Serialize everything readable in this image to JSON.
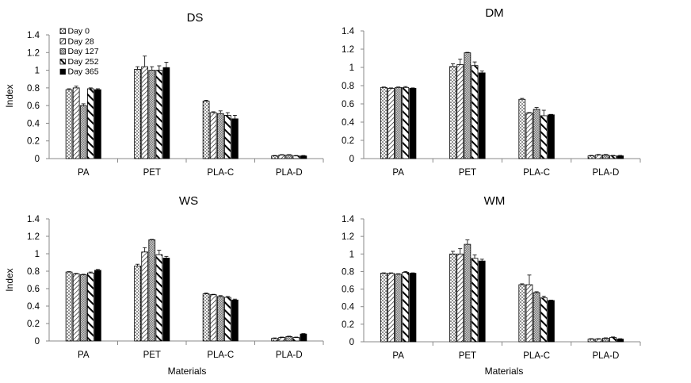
{
  "figure": {
    "series_style": [
      {
        "fill": "dots",
        "color": "#ffffff"
      },
      {
        "fill": "diag-forward",
        "color": "#ffffff"
      },
      {
        "fill": "crosshatch",
        "color": "#ffffff"
      },
      {
        "fill": "diag-back-thick",
        "color": "#ffffff"
      },
      {
        "fill": "solid",
        "color": "#000000"
      }
    ]
  },
  "chart_data": [
    {
      "type": "bar",
      "title": "DS",
      "xlabel": "",
      "ylabel": "Index",
      "ylim": [
        0,
        1.4
      ],
      "yticks": [
        "0",
        "0.2",
        "0.4",
        "0.6",
        "0.8",
        "1",
        "1.2",
        "1.4"
      ],
      "grid": false,
      "legend": "top-left",
      "categories": [
        "PA",
        "PET",
        "PLA-C",
        "PLA-D"
      ],
      "series": [
        {
          "name": "Day 0",
          "values": [
            0.78,
            1.01,
            0.65,
            0.03
          ],
          "errors": [
            0.01,
            0.03,
            0.01,
            0.005
          ]
        },
        {
          "name": "Day 28",
          "values": [
            0.8,
            1.04,
            0.52,
            0.04
          ],
          "errors": [
            0.02,
            0.12,
            0.01,
            0.005
          ]
        },
        {
          "name": "Day 127",
          "values": [
            0.6,
            1.0,
            0.51,
            0.04
          ],
          "errors": [
            0.02,
            0.04,
            0.03,
            0.005
          ]
        },
        {
          "name": "Day 252",
          "values": [
            0.79,
            1.0,
            0.49,
            0.03
          ],
          "errors": [
            0.01,
            0.05,
            0.03,
            0.005
          ]
        },
        {
          "name": "Day 365",
          "values": [
            0.78,
            1.03,
            0.45,
            0.03
          ],
          "errors": [
            0.01,
            0.06,
            0.04,
            0.005
          ]
        }
      ]
    },
    {
      "type": "bar",
      "title": "DM",
      "xlabel": "",
      "ylabel": "",
      "ylim": [
        0,
        1.4
      ],
      "yticks": [
        "0",
        "0.2",
        "0.4",
        "0.6",
        "0.8",
        "1",
        "1.2",
        "1.4"
      ],
      "grid": false,
      "categories": [
        "PA",
        "PET",
        "PLA-C",
        "PLA-D"
      ],
      "series": [
        {
          "name": "Day 0",
          "values": [
            0.78,
            1.01,
            0.65,
            0.03
          ],
          "errors": [
            0.005,
            0.03,
            0.01,
            0.005
          ]
        },
        {
          "name": "Day 28",
          "values": [
            0.77,
            1.03,
            0.5,
            0.04
          ],
          "errors": [
            0.005,
            0.06,
            0.005,
            0.005
          ]
        },
        {
          "name": "Day 127",
          "values": [
            0.78,
            1.16,
            0.54,
            0.04
          ],
          "errors": [
            0.005,
            0.005,
            0.02,
            0.005
          ]
        },
        {
          "name": "Day 252",
          "values": [
            0.78,
            1.02,
            0.47,
            0.03
          ],
          "errors": [
            0.01,
            0.04,
            0.06,
            0.005
          ]
        },
        {
          "name": "Day 365",
          "values": [
            0.77,
            0.94,
            0.48,
            0.03
          ],
          "errors": [
            0.005,
            0.02,
            0.005,
            0.005
          ]
        }
      ]
    },
    {
      "type": "bar",
      "title": "WS",
      "xlabel": "Materials",
      "ylabel": "Index",
      "ylim": [
        0,
        1.4
      ],
      "yticks": [
        "0",
        "0.2",
        "0.4",
        "0.6",
        "0.8",
        "1",
        "1.2",
        "1.4"
      ],
      "grid": false,
      "categories": [
        "PA",
        "PET",
        "PLA-C",
        "PLA-D"
      ],
      "series": [
        {
          "name": "Day 0",
          "values": [
            0.79,
            0.86,
            0.54,
            0.03
          ],
          "errors": [
            0.005,
            0.02,
            0.01,
            0.005
          ]
        },
        {
          "name": "Day 28",
          "values": [
            0.77,
            1.02,
            0.53,
            0.04
          ],
          "errors": [
            0.005,
            0.05,
            0.005,
            0.005
          ]
        },
        {
          "name": "Day 127",
          "values": [
            0.76,
            1.16,
            0.51,
            0.05
          ],
          "errors": [
            0.005,
            0.005,
            0.01,
            0.005
          ]
        },
        {
          "name": "Day 252",
          "values": [
            0.78,
            0.99,
            0.5,
            0.04
          ],
          "errors": [
            0.01,
            0.05,
            0.01,
            0.005
          ]
        },
        {
          "name": "Day 365",
          "values": [
            0.81,
            0.95,
            0.47,
            0.08
          ],
          "errors": [
            0.01,
            0.02,
            0.01,
            0.005
          ]
        }
      ]
    },
    {
      "type": "bar",
      "title": "WM",
      "xlabel": "Materials",
      "ylabel": "",
      "ylim": [
        0,
        1.4
      ],
      "yticks": [
        "0",
        "0.2",
        "0.4",
        "0.6",
        "0.8",
        "1",
        "1.2",
        "1.4"
      ],
      "grid": false,
      "categories": [
        "PA",
        "PET",
        "PLA-C",
        "PLA-D"
      ],
      "series": [
        {
          "name": "Day 0",
          "values": [
            0.78,
            1.0,
            0.65,
            0.03
          ],
          "errors": [
            0.005,
            0.03,
            0.01,
            0.005
          ]
        },
        {
          "name": "Day 28",
          "values": [
            0.78,
            1.0,
            0.65,
            0.03
          ],
          "errors": [
            0.005,
            0.06,
            0.11,
            0.005
          ]
        },
        {
          "name": "Day 127",
          "values": [
            0.77,
            1.11,
            0.56,
            0.04
          ],
          "errors": [
            0.005,
            0.05,
            0.01,
            0.005
          ]
        },
        {
          "name": "Day 252",
          "values": [
            0.79,
            0.95,
            0.5,
            0.05
          ],
          "errors": [
            0.01,
            0.04,
            0.02,
            0.005
          ]
        },
        {
          "name": "Day 365",
          "values": [
            0.78,
            0.92,
            0.47,
            0.03
          ],
          "errors": [
            0.005,
            0.02,
            0.005,
            0.005
          ]
        }
      ]
    }
  ]
}
